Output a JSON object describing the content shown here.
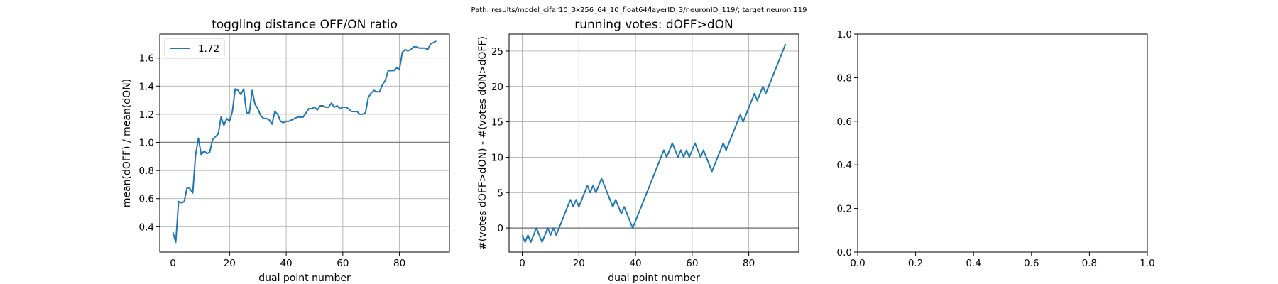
{
  "suptitle": "Path: results/model_cifar10_3x256_64_10_float64/layerID_3/neuronID_119/; target neuron 119",
  "colors": {
    "line": "#1f77b4",
    "grid": "#b0b0b0",
    "refline": "#808080",
    "axes": "#000000"
  },
  "chart_data": [
    {
      "type": "line",
      "title": "toggling distance OFF/ON ratio",
      "xlabel": "dual point number",
      "ylabel": "mean(dOFF) / mean(dON)",
      "xlim": [
        -4.65,
        97.65
      ],
      "ylim": [
        0.22,
        1.77
      ],
      "xticks": [
        0,
        20,
        40,
        60,
        80
      ],
      "yticks": [
        0.4,
        0.6,
        0.8,
        1.0,
        1.2,
        1.4,
        1.6
      ],
      "xtick_labels": [
        "0",
        "20",
        "40",
        "60",
        "80"
      ],
      "ytick_labels": [
        "0.4",
        "0.6",
        "0.8",
        "1.0",
        "1.2",
        "1.4",
        "1.6"
      ],
      "grid": true,
      "reference_line": 1.0,
      "legend": {
        "position": "upper-left",
        "entries": [
          "1.72"
        ]
      },
      "series": [
        {
          "name": "1.72",
          "y": [
            0.36,
            0.29,
            0.58,
            0.57,
            0.58,
            0.68,
            0.67,
            0.64,
            0.91,
            1.03,
            0.91,
            0.94,
            0.92,
            0.93,
            1.02,
            1.04,
            1.06,
            1.18,
            1.12,
            1.17,
            1.15,
            1.22,
            1.38,
            1.37,
            1.34,
            1.38,
            1.21,
            1.21,
            1.37,
            1.27,
            1.24,
            1.19,
            1.17,
            1.17,
            1.16,
            1.13,
            1.22,
            1.2,
            1.15,
            1.14,
            1.15,
            1.15,
            1.16,
            1.17,
            1.18,
            1.18,
            1.18,
            1.21,
            1.24,
            1.24,
            1.25,
            1.23,
            1.26,
            1.26,
            1.25,
            1.25,
            1.28,
            1.25,
            1.26,
            1.24,
            1.25,
            1.25,
            1.24,
            1.22,
            1.22,
            1.22,
            1.2,
            1.2,
            1.21,
            1.32,
            1.35,
            1.37,
            1.36,
            1.36,
            1.41,
            1.44,
            1.51,
            1.51,
            1.51,
            1.53,
            1.52,
            1.64,
            1.66,
            1.65,
            1.66,
            1.68,
            1.68,
            1.67,
            1.67,
            1.67,
            1.66,
            1.7,
            1.71,
            1.72
          ]
        }
      ]
    },
    {
      "type": "line",
      "title": "running votes: dOFF>dON",
      "xlabel": "dual point number",
      "ylabel": "#(votes dOFF>dON) - #(votes dON>dOFF)",
      "xlim": [
        -4.65,
        97.65
      ],
      "ylim": [
        -3.4,
        27.4
      ],
      "xticks": [
        0,
        20,
        40,
        60,
        80
      ],
      "yticks": [
        0,
        5,
        10,
        15,
        20,
        25
      ],
      "xtick_labels": [
        "0",
        "20",
        "40",
        "60",
        "80"
      ],
      "ytick_labels": [
        "0",
        "5",
        "10",
        "15",
        "20",
        "25"
      ],
      "grid": true,
      "reference_line": 0,
      "series": [
        {
          "y": [
            -1,
            -2,
            -1,
            -2,
            -1,
            0,
            -1,
            -2,
            -1,
            0,
            -1,
            0,
            -1,
            0,
            1,
            2,
            3,
            4,
            3,
            4,
            3,
            4,
            5,
            6,
            5,
            6,
            5,
            6,
            7,
            6,
            5,
            4,
            3,
            4,
            3,
            2,
            3,
            2,
            1,
            0,
            1,
            2,
            3,
            4,
            5,
            6,
            7,
            8,
            9,
            10,
            11,
            10,
            11,
            12,
            11,
            10,
            11,
            10,
            11,
            10,
            11,
            12,
            11,
            10,
            11,
            10,
            9,
            8,
            9,
            10,
            11,
            12,
            11,
            12,
            13,
            14,
            15,
            16,
            15,
            16,
            17,
            18,
            19,
            18,
            19,
            20,
            19,
            20,
            21,
            22,
            23,
            24,
            25,
            26
          ]
        }
      ]
    },
    {
      "type": "line",
      "title": "",
      "xlim": [
        0,
        1
      ],
      "ylim": [
        0,
        1
      ],
      "xticks": [
        0,
        0.2,
        0.4,
        0.6,
        0.8,
        1.0
      ],
      "yticks": [
        0,
        0.2,
        0.4,
        0.6,
        0.8,
        1.0
      ],
      "xtick_labels": [
        "0.0",
        "0.2",
        "0.4",
        "0.6",
        "0.8",
        "1.0"
      ],
      "ytick_labels": [
        "0.0",
        "0.2",
        "0.4",
        "0.6",
        "0.8",
        "1.0"
      ],
      "grid": false,
      "series": []
    }
  ]
}
